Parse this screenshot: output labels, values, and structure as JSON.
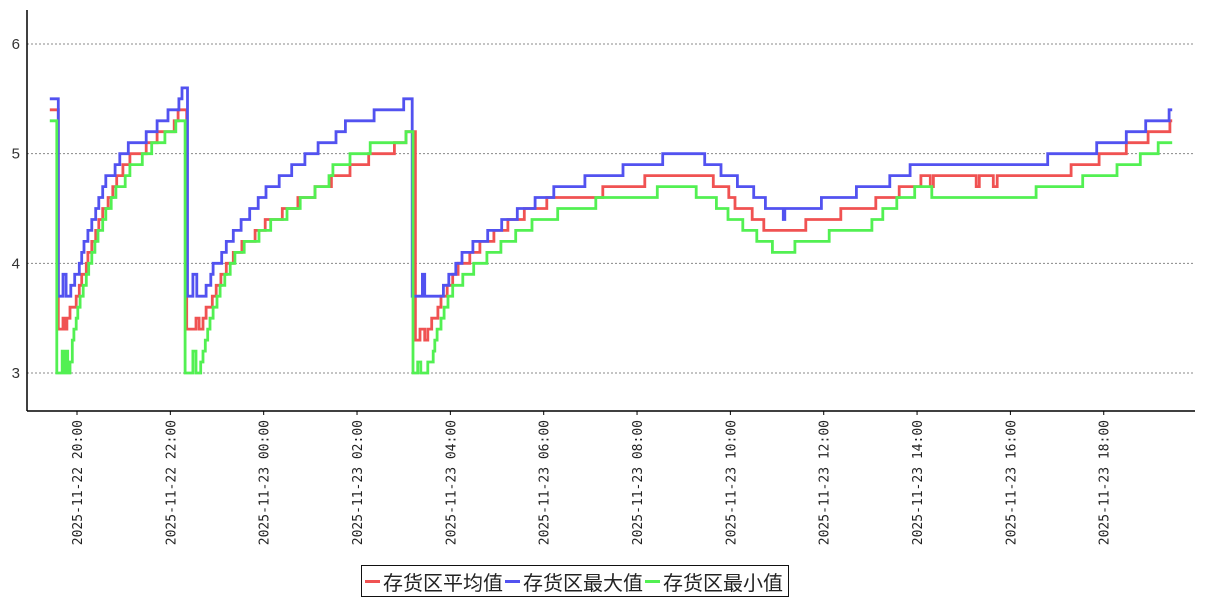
{
  "chart_data": {
    "type": "line",
    "title": "",
    "xlabel": "",
    "ylabel": "",
    "ylim": [
      2.65,
      6.31
    ],
    "xlim": [
      "2025-11-22 19:25",
      "2025-11-23 19:28"
    ],
    "grid": {
      "y": true,
      "x": false,
      "style": "dotted"
    },
    "legend_position": "bottom",
    "step": "after",
    "y_ticks": [
      "3",
      "4",
      "5",
      "6"
    ],
    "x_ticks": [
      "2025-11-22 20:00",
      "2025-11-22 22:00",
      "2025-11-23 00:00",
      "2025-11-23 02:00",
      "2025-11-23 04:00",
      "2025-11-23 06:00",
      "2025-11-23 08:00",
      "2025-11-23 10:00",
      "2025-11-23 12:00",
      "2025-11-23 14:00",
      "2025-11-23 16:00",
      "2025-11-23 18:00"
    ],
    "series": [
      {
        "name": "存货区平均值",
        "color": "#f05252",
        "points": [
          [
            "2025-11-22 19:25",
            5.4
          ],
          [
            "2025-11-22 19:36",
            3.4
          ],
          [
            "2025-11-22 19:42",
            3.5
          ],
          [
            "2025-11-22 19:45",
            3.4
          ],
          [
            "2025-11-22 19:47",
            3.5
          ],
          [
            "2025-11-22 19:51",
            3.6
          ],
          [
            "2025-11-22 19:59",
            3.7
          ],
          [
            "2025-11-22 20:03",
            3.8
          ],
          [
            "2025-11-22 20:06",
            3.9
          ],
          [
            "2025-11-22 20:12",
            4.0
          ],
          [
            "2025-11-22 20:14",
            4.1
          ],
          [
            "2025-11-22 20:19",
            4.2
          ],
          [
            "2025-11-22 20:24",
            4.3
          ],
          [
            "2025-11-22 20:28",
            4.4
          ],
          [
            "2025-11-22 20:33",
            4.5
          ],
          [
            "2025-11-22 20:40",
            4.6
          ],
          [
            "2025-11-22 20:46",
            4.7
          ],
          [
            "2025-11-22 20:51",
            4.8
          ],
          [
            "2025-11-22 20:59",
            4.9
          ],
          [
            "2025-11-22 21:08",
            5.0
          ],
          [
            "2025-11-22 21:29",
            5.1
          ],
          [
            "2025-11-22 21:43",
            5.2
          ],
          [
            "2025-11-22 22:05",
            5.3
          ],
          [
            "2025-11-22 22:10",
            5.4
          ],
          [
            "2025-11-22 22:21",
            3.4
          ],
          [
            "2025-11-22 22:33",
            3.5
          ],
          [
            "2025-11-22 22:37",
            3.4
          ],
          [
            "2025-11-22 22:42",
            3.5
          ],
          [
            "2025-11-22 22:46",
            3.6
          ],
          [
            "2025-11-22 22:54",
            3.7
          ],
          [
            "2025-11-22 22:59",
            3.8
          ],
          [
            "2025-11-22 23:05",
            3.9
          ],
          [
            "2025-11-22 23:12",
            4.0
          ],
          [
            "2025-11-22 23:21",
            4.1
          ],
          [
            "2025-11-22 23:32",
            4.2
          ],
          [
            "2025-11-22 23:49",
            4.3
          ],
          [
            "2025-11-23 00:02",
            4.4
          ],
          [
            "2025-11-23 00:24",
            4.5
          ],
          [
            "2025-11-23 00:44",
            4.6
          ],
          [
            "2025-11-23 01:06",
            4.7
          ],
          [
            "2025-11-23 01:27",
            4.8
          ],
          [
            "2025-11-23 01:51",
            4.9
          ],
          [
            "2025-11-23 02:15",
            5.0
          ],
          [
            "2025-11-23 02:48",
            5.1
          ],
          [
            "2025-11-23 03:03",
            5.2
          ],
          [
            "2025-11-23 03:15",
            3.3
          ],
          [
            "2025-11-23 03:21",
            3.4
          ],
          [
            "2025-11-23 03:27",
            3.3
          ],
          [
            "2025-11-23 03:31",
            3.4
          ],
          [
            "2025-11-23 03:36",
            3.5
          ],
          [
            "2025-11-23 03:44",
            3.6
          ],
          [
            "2025-11-23 03:48",
            3.7
          ],
          [
            "2025-11-23 03:56",
            3.8
          ],
          [
            "2025-11-23 04:03",
            3.9
          ],
          [
            "2025-11-23 04:10",
            4.0
          ],
          [
            "2025-11-23 04:25",
            4.1
          ],
          [
            "2025-11-23 04:38",
            4.2
          ],
          [
            "2025-11-23 04:56",
            4.3
          ],
          [
            "2025-11-23 05:14",
            4.4
          ],
          [
            "2025-11-23 05:35",
            4.5
          ],
          [
            "2025-11-23 06:04",
            4.6
          ],
          [
            "2025-11-23 07:16",
            4.7
          ],
          [
            "2025-11-23 08:10",
            4.8
          ],
          [
            "2025-11-23 09:38",
            4.7
          ],
          [
            "2025-11-23 09:58",
            4.6
          ],
          [
            "2025-11-23 10:06",
            4.5
          ],
          [
            "2025-11-23 10:28",
            4.4
          ],
          [
            "2025-11-23 10:43",
            4.3
          ],
          [
            "2025-11-23 11:37",
            4.4
          ],
          [
            "2025-11-23 12:22",
            4.5
          ],
          [
            "2025-11-23 13:07",
            4.6
          ],
          [
            "2025-11-23 13:37",
            4.7
          ],
          [
            "2025-11-23 14:05",
            4.8
          ],
          [
            "2025-11-23 14:17",
            4.7
          ],
          [
            "2025-11-23 14:21",
            4.8
          ],
          [
            "2025-11-23 15:16",
            4.7
          ],
          [
            "2025-11-23 15:20",
            4.8
          ],
          [
            "2025-11-23 15:38",
            4.7
          ],
          [
            "2025-11-23 15:43",
            4.8
          ],
          [
            "2025-11-23 17:18",
            4.9
          ],
          [
            "2025-11-23 17:54",
            5.0
          ],
          [
            "2025-11-23 18:29",
            5.1
          ],
          [
            "2025-11-23 18:57",
            5.2
          ],
          [
            "2025-11-23 19:25",
            5.3
          ],
          [
            "2025-11-23 19:28",
            5.3
          ]
        ]
      },
      {
        "name": "存货区最大值",
        "color": "#5252f0",
        "points": [
          [
            "2025-11-22 19:25",
            5.5
          ],
          [
            "2025-11-22 19:36",
            3.7
          ],
          [
            "2025-11-22 19:42",
            3.9
          ],
          [
            "2025-11-22 19:46",
            3.7
          ],
          [
            "2025-11-22 19:52",
            3.8
          ],
          [
            "2025-11-22 19:57",
            3.9
          ],
          [
            "2025-11-22 20:03",
            4.0
          ],
          [
            "2025-11-22 20:06",
            4.1
          ],
          [
            "2025-11-22 20:09",
            4.2
          ],
          [
            "2025-11-22 20:14",
            4.3
          ],
          [
            "2025-11-22 20:19",
            4.4
          ],
          [
            "2025-11-22 20:24",
            4.5
          ],
          [
            "2025-11-22 20:28",
            4.6
          ],
          [
            "2025-11-22 20:33",
            4.7
          ],
          [
            "2025-11-22 20:37",
            4.8
          ],
          [
            "2025-11-22 20:49",
            4.9
          ],
          [
            "2025-11-22 20:55",
            5.0
          ],
          [
            "2025-11-22 21:06",
            5.1
          ],
          [
            "2025-11-22 21:29",
            5.2
          ],
          [
            "2025-11-22 21:43",
            5.3
          ],
          [
            "2025-11-22 21:57",
            5.4
          ],
          [
            "2025-11-22 22:11",
            5.5
          ],
          [
            "2025-11-22 22:15",
            5.6
          ],
          [
            "2025-11-22 22:22",
            3.7
          ],
          [
            "2025-11-22 22:29",
            3.9
          ],
          [
            "2025-11-22 22:34",
            3.7
          ],
          [
            "2025-11-22 22:46",
            3.8
          ],
          [
            "2025-11-22 22:52",
            3.9
          ],
          [
            "2025-11-22 22:55",
            4.0
          ],
          [
            "2025-11-22 23:06",
            4.1
          ],
          [
            "2025-11-22 23:12",
            4.2
          ],
          [
            "2025-11-22 23:21",
            4.3
          ],
          [
            "2025-11-22 23:31",
            4.4
          ],
          [
            "2025-11-22 23:42",
            4.5
          ],
          [
            "2025-11-22 23:53",
            4.6
          ],
          [
            "2025-11-23 00:03",
            4.7
          ],
          [
            "2025-11-23 00:20",
            4.8
          ],
          [
            "2025-11-23 00:36",
            4.9
          ],
          [
            "2025-11-23 00:53",
            5.0
          ],
          [
            "2025-11-23 01:10",
            5.1
          ],
          [
            "2025-11-23 01:33",
            5.2
          ],
          [
            "2025-11-23 01:45",
            5.3
          ],
          [
            "2025-11-23 02:22",
            5.4
          ],
          [
            "2025-11-23 03:00",
            5.5
          ],
          [
            "2025-11-23 03:11",
            3.7
          ],
          [
            "2025-11-23 03:24",
            3.9
          ],
          [
            "2025-11-23 03:27",
            3.7
          ],
          [
            "2025-11-23 03:51",
            3.8
          ],
          [
            "2025-11-23 03:58",
            3.9
          ],
          [
            "2025-11-23 04:07",
            4.0
          ],
          [
            "2025-11-23 04:15",
            4.1
          ],
          [
            "2025-11-23 04:29",
            4.2
          ],
          [
            "2025-11-23 04:48",
            4.3
          ],
          [
            "2025-11-23 05:06",
            4.4
          ],
          [
            "2025-11-23 05:26",
            4.5
          ],
          [
            "2025-11-23 05:49",
            4.6
          ],
          [
            "2025-11-23 06:13",
            4.7
          ],
          [
            "2025-11-23 06:53",
            4.8
          ],
          [
            "2025-11-23 07:42",
            4.9
          ],
          [
            "2025-11-23 08:33",
            5.0
          ],
          [
            "2025-11-23 09:27",
            4.9
          ],
          [
            "2025-11-23 09:48",
            4.8
          ],
          [
            "2025-11-23 10:09",
            4.7
          ],
          [
            "2025-11-23 10:30",
            4.6
          ],
          [
            "2025-11-23 10:45",
            4.5
          ],
          [
            "2025-11-23 11:08",
            4.4
          ],
          [
            "2025-11-23 11:10",
            4.5
          ],
          [
            "2025-11-23 11:57",
            4.6
          ],
          [
            "2025-11-23 12:42",
            4.7
          ],
          [
            "2025-11-23 13:25",
            4.8
          ],
          [
            "2025-11-23 13:51",
            4.9
          ],
          [
            "2025-11-23 16:48",
            5.0
          ],
          [
            "2025-11-23 17:51",
            5.1
          ],
          [
            "2025-11-23 18:29",
            5.2
          ],
          [
            "2025-11-23 18:54",
            5.3
          ],
          [
            "2025-11-23 19:24",
            5.4
          ],
          [
            "2025-11-23 19:28",
            5.4
          ]
        ]
      },
      {
        "name": "存货区最小值",
        "color": "#52f052",
        "points": [
          [
            "2025-11-22 19:25",
            5.3
          ],
          [
            "2025-11-22 19:34",
            3.0
          ],
          [
            "2025-11-22 19:41",
            3.2
          ],
          [
            "2025-11-22 19:43",
            3.0
          ],
          [
            "2025-11-22 19:46",
            3.2
          ],
          [
            "2025-11-22 19:48",
            3.0
          ],
          [
            "2025-11-22 19:51",
            3.1
          ],
          [
            "2025-11-22 19:54",
            3.3
          ],
          [
            "2025-11-22 19:56",
            3.4
          ],
          [
            "2025-11-22 19:59",
            3.5
          ],
          [
            "2025-11-22 20:01",
            3.6
          ],
          [
            "2025-11-22 20:04",
            3.7
          ],
          [
            "2025-11-22 20:08",
            3.8
          ],
          [
            "2025-11-22 20:12",
            3.9
          ],
          [
            "2025-11-22 20:15",
            4.0
          ],
          [
            "2025-11-22 20:19",
            4.1
          ],
          [
            "2025-11-22 20:23",
            4.2
          ],
          [
            "2025-11-22 20:27",
            4.3
          ],
          [
            "2025-11-22 20:33",
            4.4
          ],
          [
            "2025-11-22 20:37",
            4.5
          ],
          [
            "2025-11-22 20:44",
            4.6
          ],
          [
            "2025-11-22 20:50",
            4.7
          ],
          [
            "2025-11-22 21:02",
            4.8
          ],
          [
            "2025-11-22 21:08",
            4.9
          ],
          [
            "2025-11-22 21:24",
            5.0
          ],
          [
            "2025-11-22 21:36",
            5.1
          ],
          [
            "2025-11-22 21:53",
            5.2
          ],
          [
            "2025-11-22 22:07",
            5.3
          ],
          [
            "2025-11-22 22:19",
            3.0
          ],
          [
            "2025-11-22 22:29",
            3.2
          ],
          [
            "2025-11-22 22:33",
            3.0
          ],
          [
            "2025-11-22 22:39",
            3.1
          ],
          [
            "2025-11-22 22:42",
            3.2
          ],
          [
            "2025-11-22 22:45",
            3.3
          ],
          [
            "2025-11-22 22:48",
            3.4
          ],
          [
            "2025-11-22 22:51",
            3.5
          ],
          [
            "2025-11-22 22:55",
            3.6
          ],
          [
            "2025-11-22 23:00",
            3.7
          ],
          [
            "2025-11-22 23:04",
            3.8
          ],
          [
            "2025-11-22 23:10",
            3.9
          ],
          [
            "2025-11-22 23:17",
            4.0
          ],
          [
            "2025-11-22 23:23",
            4.1
          ],
          [
            "2025-11-22 23:35",
            4.2
          ],
          [
            "2025-11-22 23:54",
            4.3
          ],
          [
            "2025-11-23 00:09",
            4.4
          ],
          [
            "2025-11-23 00:30",
            4.5
          ],
          [
            "2025-11-23 00:47",
            4.6
          ],
          [
            "2025-11-23 01:06",
            4.7
          ],
          [
            "2025-11-23 01:24",
            4.8
          ],
          [
            "2025-11-23 01:29",
            4.9
          ],
          [
            "2025-11-23 01:51",
            5.0
          ],
          [
            "2025-11-23 02:17",
            5.1
          ],
          [
            "2025-11-23 03:03",
            5.2
          ],
          [
            "2025-11-23 03:12",
            3.0
          ],
          [
            "2025-11-23 03:18",
            3.1
          ],
          [
            "2025-11-23 03:22",
            3.0
          ],
          [
            "2025-11-23 03:31",
            3.1
          ],
          [
            "2025-11-23 03:38",
            3.2
          ],
          [
            "2025-11-23 03:40",
            3.3
          ],
          [
            "2025-11-23 03:43",
            3.4
          ],
          [
            "2025-11-23 03:48",
            3.5
          ],
          [
            "2025-11-23 03:52",
            3.6
          ],
          [
            "2025-11-23 03:57",
            3.7
          ],
          [
            "2025-11-23 04:03",
            3.8
          ],
          [
            "2025-11-23 04:16",
            3.9
          ],
          [
            "2025-11-23 04:30",
            4.0
          ],
          [
            "2025-11-23 04:47",
            4.1
          ],
          [
            "2025-11-23 05:05",
            4.2
          ],
          [
            "2025-11-23 05:24",
            4.3
          ],
          [
            "2025-11-23 05:45",
            4.4
          ],
          [
            "2025-11-23 06:18",
            4.5
          ],
          [
            "2025-11-23 07:07",
            4.6
          ],
          [
            "2025-11-23 08:26",
            4.7
          ],
          [
            "2025-11-23 09:16",
            4.6
          ],
          [
            "2025-11-23 09:42",
            4.5
          ],
          [
            "2025-11-23 09:57",
            4.4
          ],
          [
            "2025-11-23 10:16",
            4.3
          ],
          [
            "2025-11-23 10:34",
            4.2
          ],
          [
            "2025-11-23 10:54",
            4.1
          ],
          [
            "2025-11-23 11:23",
            4.2
          ],
          [
            "2025-11-23 12:07",
            4.3
          ],
          [
            "2025-11-23 13:02",
            4.4
          ],
          [
            "2025-11-23 13:16",
            4.5
          ],
          [
            "2025-11-23 13:34",
            4.6
          ],
          [
            "2025-11-23 13:57",
            4.7
          ],
          [
            "2025-11-23 14:19",
            4.6
          ],
          [
            "2025-11-23 16:33",
            4.7
          ],
          [
            "2025-11-23 17:33",
            4.8
          ],
          [
            "2025-11-23 18:17",
            4.9
          ],
          [
            "2025-11-23 18:47",
            5.0
          ],
          [
            "2025-11-23 19:10",
            5.1
          ],
          [
            "2025-11-23 19:28",
            5.1
          ]
        ]
      }
    ]
  }
}
